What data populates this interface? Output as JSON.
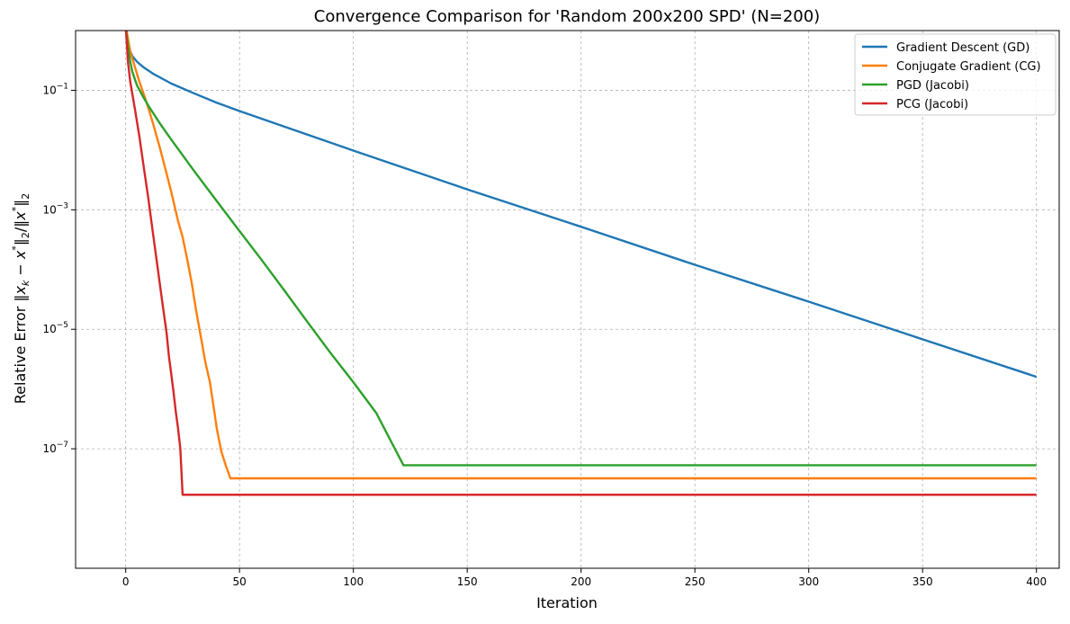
{
  "chart_data": {
    "type": "line",
    "title": "Convergence Comparison for 'Random 200x200 SPD' (N=200)",
    "xlabel": "Iteration",
    "ylabel": "Relative Error ‖x_k − x*‖₂/‖x*‖₂",
    "ylabel_parts": {
      "prefix": "Relative Error ",
      "bar1": "‖",
      "x": "x",
      "k": "k",
      "minus": " − ",
      "x2": "x",
      "star": "*",
      "bar2": "‖",
      "two": "2",
      "slash": "/‖",
      "x3": "x",
      "star2": "*",
      "bar3": "‖",
      "two2": "2"
    },
    "xlim": [
      -22,
      410
    ],
    "ylim": [
      1e-09,
      1
    ],
    "yscale": "log",
    "xticks": [
      0,
      50,
      100,
      150,
      200,
      250,
      300,
      350,
      400
    ],
    "xtick_labels": [
      "0",
      "50",
      "100",
      "150",
      "200",
      "250",
      "300",
      "350",
      "400"
    ],
    "yticks": [
      {
        "value": 0.1,
        "base": "10",
        "exp": "−1"
      },
      {
        "value": 0.001,
        "base": "10",
        "exp": "−3"
      },
      {
        "value": 1e-05,
        "base": "10",
        "exp": "−5"
      },
      {
        "value": 1e-07,
        "base": "10",
        "exp": "−7"
      }
    ],
    "grid": true,
    "legend_position": "top-right",
    "series": [
      {
        "name": "Gradient Descent (GD)",
        "color": "#1f77b4",
        "points": [
          [
            0,
            1.2
          ],
          [
            1,
            0.6
          ],
          [
            2,
            0.45
          ],
          [
            3,
            0.37
          ],
          [
            5,
            0.3
          ],
          [
            8,
            0.24
          ],
          [
            12,
            0.19
          ],
          [
            20,
            0.13
          ],
          [
            30,
            0.089
          ],
          [
            40,
            0.062
          ],
          [
            50,
            0.045
          ],
          [
            75,
            0.021
          ],
          [
            100,
            0.0098
          ],
          [
            150,
            0.0022
          ],
          [
            200,
            0.00052
          ],
          [
            250,
            0.00012
          ],
          [
            300,
            2.9e-05
          ],
          [
            350,
            6.8e-06
          ],
          [
            400,
            1.6e-06
          ]
        ]
      },
      {
        "name": "Conjugate Gradient (CG)",
        "color": "#ff7f0e",
        "points": [
          [
            0,
            1.2
          ],
          [
            2,
            0.45
          ],
          [
            4,
            0.25
          ],
          [
            6,
            0.14
          ],
          [
            8,
            0.085
          ],
          [
            10,
            0.05
          ],
          [
            12,
            0.028
          ],
          [
            15,
            0.011
          ],
          [
            18,
            0.004
          ],
          [
            20,
            0.002
          ],
          [
            23,
            0.00065
          ],
          [
            25,
            0.00035
          ],
          [
            27,
            0.00015
          ],
          [
            29,
            6e-05
          ],
          [
            31,
            2e-05
          ],
          [
            33,
            7.5e-06
          ],
          [
            35,
            2.8e-06
          ],
          [
            37,
            1.3e-06
          ],
          [
            38,
            7.2e-07
          ],
          [
            39,
            4e-07
          ],
          [
            40,
            2.2e-07
          ],
          [
            42,
            9e-08
          ],
          [
            44,
            5.2e-08
          ],
          [
            46,
            3.2e-08
          ],
          [
            400,
            3.2e-08
          ]
        ]
      },
      {
        "name": "PGD (Jacobi)",
        "color": "#2ca02c",
        "points": [
          [
            0,
            1.2
          ],
          [
            1,
            0.55
          ],
          [
            2,
            0.3
          ],
          [
            3,
            0.2
          ],
          [
            5,
            0.12
          ],
          [
            8,
            0.074
          ],
          [
            10,
            0.055
          ],
          [
            15,
            0.028
          ],
          [
            20,
            0.015
          ],
          [
            30,
            0.0045
          ],
          [
            40,
            0.0014
          ],
          [
            50,
            0.00044
          ],
          [
            60,
            0.00014
          ],
          [
            70,
            4.3e-05
          ],
          [
            80,
            1.3e-05
          ],
          [
            90,
            4e-06
          ],
          [
            100,
            1.3e-06
          ],
          [
            110,
            4e-07
          ],
          [
            122,
            5.3e-08
          ],
          [
            400,
            5.3e-08
          ]
        ]
      },
      {
        "name": "PCG (Jacobi)",
        "color": "#d62728",
        "points": [
          [
            0,
            1.2
          ],
          [
            1,
            0.3
          ],
          [
            2,
            0.14
          ],
          [
            4,
            0.05
          ],
          [
            6,
            0.017
          ],
          [
            8,
            0.005
          ],
          [
            10,
            0.0015
          ],
          [
            12,
            0.0004
          ],
          [
            14,
            0.00011
          ],
          [
            16,
            3e-05
          ],
          [
            18,
            8.5e-06
          ],
          [
            19,
            3.5e-06
          ],
          [
            20,
            1.8e-06
          ],
          [
            21,
            9e-07
          ],
          [
            22,
            4.2e-07
          ],
          [
            23,
            2.2e-07
          ],
          [
            24,
            1e-07
          ],
          [
            25,
            1.7e-08
          ],
          [
            400,
            1.7e-08
          ]
        ]
      }
    ]
  }
}
